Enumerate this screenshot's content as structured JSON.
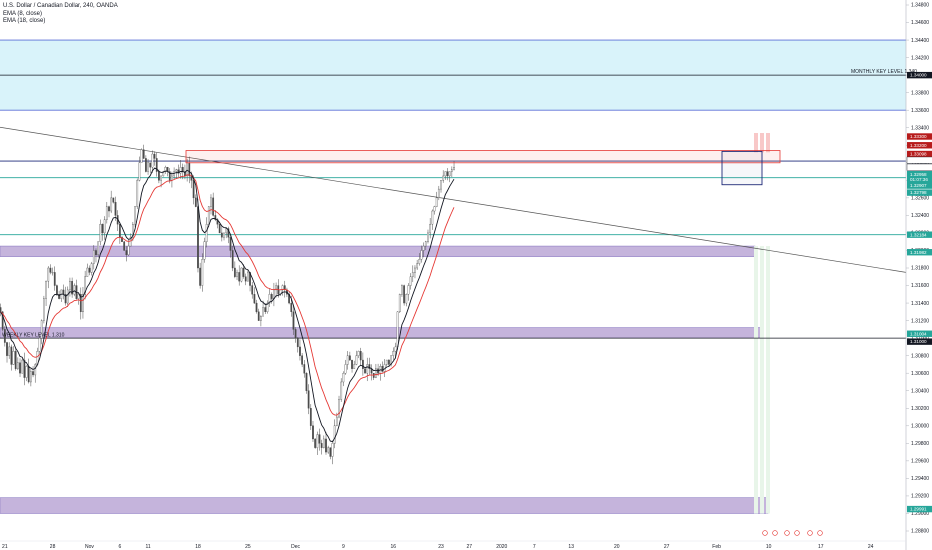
{
  "legend": {
    "symbol": "U.S. Dollar / Canadian Dollar, 240, OANDA",
    "ema_fast": "EMA (8, close)",
    "ema_slow": "EMA (18, close)"
  },
  "colors": {
    "ema_fast": "#131722",
    "ema_slow": "#e53935",
    "candle": "#4a4a4a",
    "zone_fill": "#c5b4dc",
    "zone_edge": "#8e7cc3",
    "sky_fill": "#d9f3fa",
    "sky_edge": "#5b6fd6",
    "red_box": "#e53935",
    "navy_box": "#1e2a78",
    "green_line": "#26a69a",
    "trend_line": "#555555",
    "projection": "#e8f5e9",
    "dark_tag": "#131722",
    "red_tag": "#b71c1c",
    "green_tag": "#26a69a"
  },
  "chart_data": {
    "type": "candlestick",
    "ylim": [
      1.288,
      1.349
    ],
    "y_ticks": [
      "1.34800",
      "1.34600",
      "1.34400",
      "1.34200",
      "1.34000",
      "1.33800",
      "1.33600",
      "1.33400",
      "1.33200",
      "1.33000",
      "1.32800",
      "1.32600",
      "1.32400",
      "1.32200",
      "1.32000",
      "1.31800",
      "1.31600",
      "1.31400",
      "1.31200",
      "1.31000",
      "1.30800",
      "1.30600",
      "1.30400",
      "1.30200",
      "1.30000",
      "1.29800",
      "1.29600",
      "1.29400",
      "1.29200",
      "1.29000",
      "1.28800"
    ],
    "y_tick_values": [
      1.348,
      1.346,
      1.344,
      1.342,
      1.34,
      1.338,
      1.336,
      1.334,
      1.332,
      1.33,
      1.328,
      1.326,
      1.324,
      1.322,
      1.32,
      1.318,
      1.316,
      1.314,
      1.312,
      1.31,
      1.308,
      1.306,
      1.304,
      1.302,
      1.3,
      1.298,
      1.296,
      1.294,
      1.292,
      1.29,
      1.288
    ],
    "x_ticks": [
      "21",
      "28",
      "Nov",
      "6",
      "11",
      "18",
      "25",
      "Dec",
      "9",
      "16",
      "23",
      "27",
      "2020",
      "7",
      "13",
      "20",
      "27",
      "Feb",
      "10",
      "17",
      "24"
    ],
    "x_tick_index": [
      2,
      24,
      41,
      55,
      68,
      91,
      114,
      136,
      158,
      181,
      203,
      216,
      231,
      246,
      263,
      284,
      307,
      330,
      354,
      378,
      401
    ],
    "close_series": [
      [
        1.313,
        1.311,
        1.3095,
        1.308,
        1.309,
        1.307,
        1.3085,
        1.3065,
        1.3072,
        1.306,
        1.3075,
        1.3055,
        1.3068,
        1.305,
        1.3062,
        1.3058,
        1.307,
        1.3085,
        1.31,
        1.312,
        1.3145,
        1.3165,
        1.318,
        1.3175
      ],
      [
        1.3175,
        1.316,
        1.315,
        1.3145,
        1.3155,
        1.315,
        1.314,
        1.3155,
        1.3165,
        1.315,
        1.316,
        1.3145,
        1.315,
        1.313,
        1.315,
        1.317,
        1.318,
        1.3175,
        1.3185,
        1.32,
        1.3195,
        1.321,
        1.323,
        1.322,
        1.3235,
        1.325,
        1.3245,
        1.326,
        1.3255,
        1.324,
        1.323,
        1.3215,
        1.321,
        1.32,
        1.3195,
        1.3205,
        1.3215,
        1.323,
        1.325,
        1.328,
        1.33,
        1.3315
      ],
      [
        1.3305,
        1.329,
        1.33,
        1.3295,
        1.331,
        1.3305,
        1.329,
        1.328,
        1.3285,
        1.329,
        1.3295,
        1.329,
        1.328,
        1.3285,
        1.329,
        1.3292,
        1.3288,
        1.3295,
        1.329,
        1.3285,
        1.33,
        1.3285,
        1.328,
        1.326
      ],
      [
        1.325,
        1.318,
        1.316,
        1.319,
        1.321,
        1.323,
        1.325,
        1.326,
        1.324,
        1.3235,
        1.323,
        1.322,
        1.3215,
        1.322,
        1.3225,
        1.3215,
        1.32,
        1.318,
        1.317,
        1.3175,
        1.3165,
        1.318,
        1.317,
        1.3165,
        1.3175,
        1.316,
        1.315,
        1.314,
        1.313,
        1.312,
        1.3125,
        1.3135,
        1.313,
        1.314,
        1.315,
        1.3145,
        1.3155,
        1.316,
        1.315,
        1.3155,
        1.316,
        1.3155,
        1.315,
        1.314,
        1.313,
        1.311,
        1.31,
        1.309,
        1.308,
        1.307,
        1.306,
        1.304,
        1.302,
        1.3,
        1.2985,
        1.2975,
        1.299,
        1.298,
        1.2975,
        1.2985,
        1.297,
        1.2975,
        1.2965,
        1.298,
        1.3
      ],
      [
        1.301,
        1.303,
        1.305,
        1.306,
        1.307,
        1.308,
        1.3075,
        1.3065,
        1.307,
        1.308,
        1.3085,
        1.3075,
        1.3065,
        1.306,
        1.307,
        1.3065,
        1.306,
        1.3055,
        1.3065,
        1.306,
        1.3068,
        1.3062,
        1.307,
        1.3075,
        1.307,
        1.308,
        1.3085,
        1.309,
        1.313,
        1.315,
        1.316,
        1.314,
        1.315,
        1.316,
        1.317,
        1.3175,
        1.318,
        1.3185,
        1.319,
        1.32,
        1.3205,
        1.321,
        1.322,
        1.323,
        1.3245,
        1.325,
        1.326,
        1.327,
        1.328,
        1.3285,
        1.329,
        1.3285,
        1.329,
        1.3292,
        1.3295
      ]
    ],
    "zones": [
      {
        "name": "sky-zone",
        "low": 1.336,
        "high": 1.344
      },
      {
        "name": "purple-zone-1",
        "low": 1.3193,
        "high": 1.3205
      },
      {
        "name": "purple-zone-2",
        "low": 1.31,
        "high": 1.3112
      },
      {
        "name": "purple-zone-3",
        "low": 1.29,
        "high": 1.2918
      }
    ],
    "red_box": {
      "low": 1.33,
      "high": 1.3314,
      "from": 85,
      "to": 355
    },
    "navy_box": {
      "low": 1.3275,
      "high": 1.3313,
      "from": 332,
      "to": 352
    },
    "h_lines": [
      {
        "name": "monthly-key-1340",
        "y": 1.34,
        "color": "#131722"
      },
      {
        "name": "navy-line",
        "y": 1.3302,
        "color": "#1e2a78"
      },
      {
        "name": "green-line-upper",
        "y": 1.3283,
        "color": "#26a69a"
      },
      {
        "name": "green-line-lower",
        "y": 1.3218,
        "color": "#26a69a"
      },
      {
        "name": "key-level-1310",
        "y": 1.31,
        "color": "#131722"
      }
    ],
    "trend_line": {
      "start": [
        -2,
        1.3342
      ],
      "end": [
        420,
        1.3175
      ]
    },
    "annotations": {
      "monthly": "MONTHLY KEY LEVEL 1.340",
      "weekly": "WEEKLY KEY LEVEL 1.310"
    },
    "price_tags": [
      {
        "label": "1.34000",
        "y": 1.34,
        "color": "#131722"
      },
      {
        "label": "1.33300",
        "y": 1.333,
        "color": "#b71c1c"
      },
      {
        "label": "1.33200",
        "y": 1.332,
        "color": "#b71c1c"
      },
      {
        "label": "1.33098",
        "y": 1.331,
        "color": "#b71c1c"
      },
      {
        "label": "1.33030",
        "y": 1.3303,
        "color": "#ffffff"
      },
      {
        "label": "1.33028",
        "y": 1.3295,
        "color": "#ffffff"
      },
      {
        "label": "1.32958",
        "y": 1.3287,
        "color": "#26a69a"
      },
      {
        "label": "01:07:36",
        "y": 1.3281,
        "color": "#26a69a"
      },
      {
        "label": "1.32907",
        "y": 1.3274,
        "color": "#26a69a"
      },
      {
        "label": "1.32798",
        "y": 1.3266,
        "color": "#26a69a"
      },
      {
        "label": "1.32184",
        "y": 1.3218,
        "color": "#26a69a"
      },
      {
        "label": "1.31982",
        "y": 1.3198,
        "color": "#26a69a"
      },
      {
        "label": "1.31004",
        "y": 1.3105,
        "color": "#26a69a"
      },
      {
        "label": "1.31000",
        "y": 1.3096,
        "color": "#131722"
      },
      {
        "label": "1.29991",
        "y": 1.2905,
        "color": "#26a69a"
      }
    ]
  }
}
